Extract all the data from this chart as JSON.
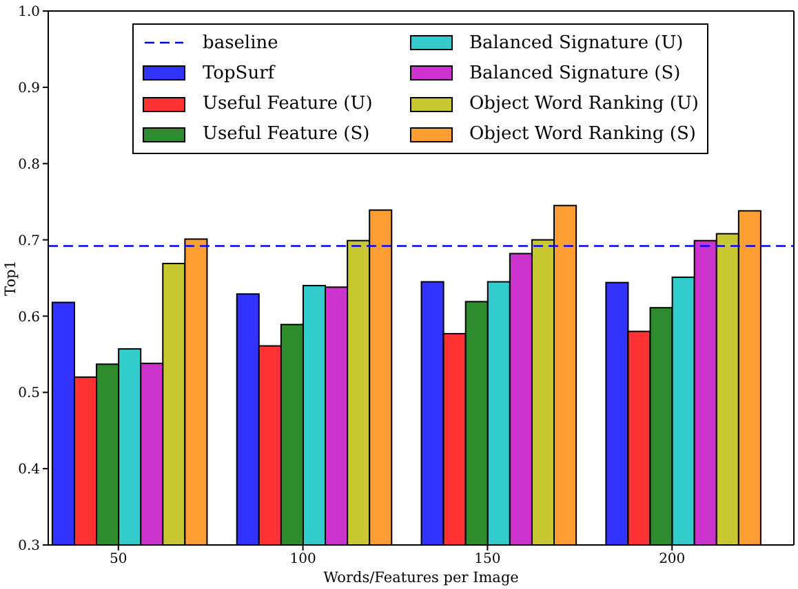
{
  "chart_data": {
    "type": "bar",
    "xlabel": "Words/Features per Image",
    "ylabel": "Top1",
    "x": [
      50,
      100,
      150,
      200
    ],
    "xlim": [
      31,
      233
    ],
    "xticks": [
      50,
      100,
      150,
      200
    ],
    "ylim": [
      0.3,
      1.0
    ],
    "yticks": [
      0.3,
      0.4,
      0.5,
      0.6,
      0.7,
      0.8,
      0.9,
      {
        "value": 1.0,
        "label": "1.0"
      }
    ],
    "series": [
      {
        "name": "TopSurf",
        "color": "#3333ff",
        "values": [
          0.618,
          0.629,
          0.645,
          0.644
        ]
      },
      {
        "name": "Useful Feature (U)",
        "color": "#ff3333",
        "values": [
          0.52,
          0.561,
          0.577,
          0.58
        ]
      },
      {
        "name": "Useful Feature (S)",
        "color": "#2e8b2e",
        "values": [
          0.537,
          0.589,
          0.619,
          0.611
        ]
      },
      {
        "name": "Balanced Signature (U)",
        "color": "#33cccc",
        "values": [
          0.557,
          0.64,
          0.645,
          0.651
        ]
      },
      {
        "name": "Balanced Signature (S)",
        "color": "#cc33cc",
        "values": [
          0.538,
          0.638,
          0.682,
          0.699
        ]
      },
      {
        "name": "Object Word Ranking (U)",
        "color": "#c8c832",
        "values": [
          0.669,
          0.699,
          0.7,
          0.708
        ]
      },
      {
        "name": "Object Word Ranking (S)",
        "color": "#ff9f33",
        "values": [
          0.701,
          0.739,
          0.745,
          0.738
        ]
      }
    ],
    "ref_lines": [
      {
        "axis": "y",
        "value": 0.692,
        "label": "baseline",
        "color": "#0000ff",
        "line_style": "dashed"
      }
    ],
    "legend": "top"
  }
}
